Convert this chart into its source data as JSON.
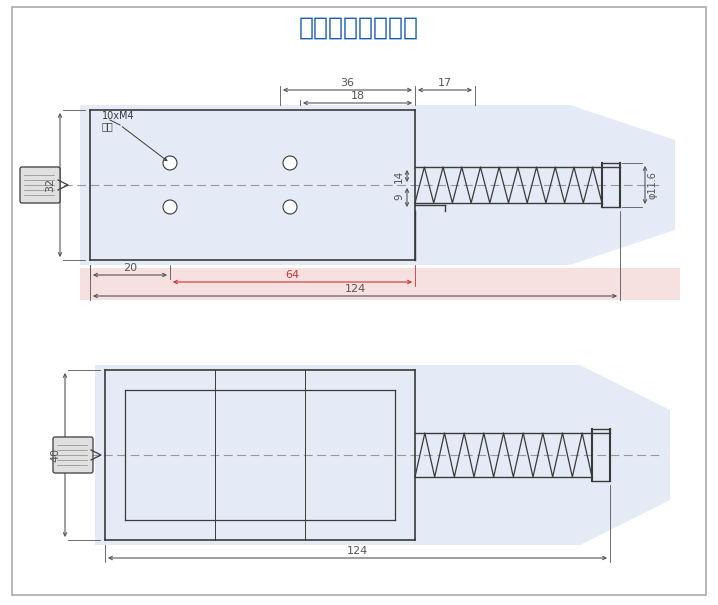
{
  "title": "电磁铁外形尺寸图",
  "title_color": "#1a5fb4",
  "title_fontsize": 18,
  "bg_color": "#ffffff",
  "dim_color": "#555555",
  "line_color": "#3a3a3a",
  "blue_fill": "#ccd9ee",
  "red_fill": "#f2c8c8",
  "note_10xM4": "10xM4",
  "note_dui": "对穿",
  "dim_36": "36",
  "dim_17": "17",
  "dim_18": "18",
  "dim_14": "14",
  "dim_9": "9",
  "dim_phi": "φ11.6",
  "dim_32": "32",
  "dim_20": "20",
  "dim_64": "64",
  "dim_124_top": "124",
  "dim_40": "40",
  "dim_124_bot": "124"
}
